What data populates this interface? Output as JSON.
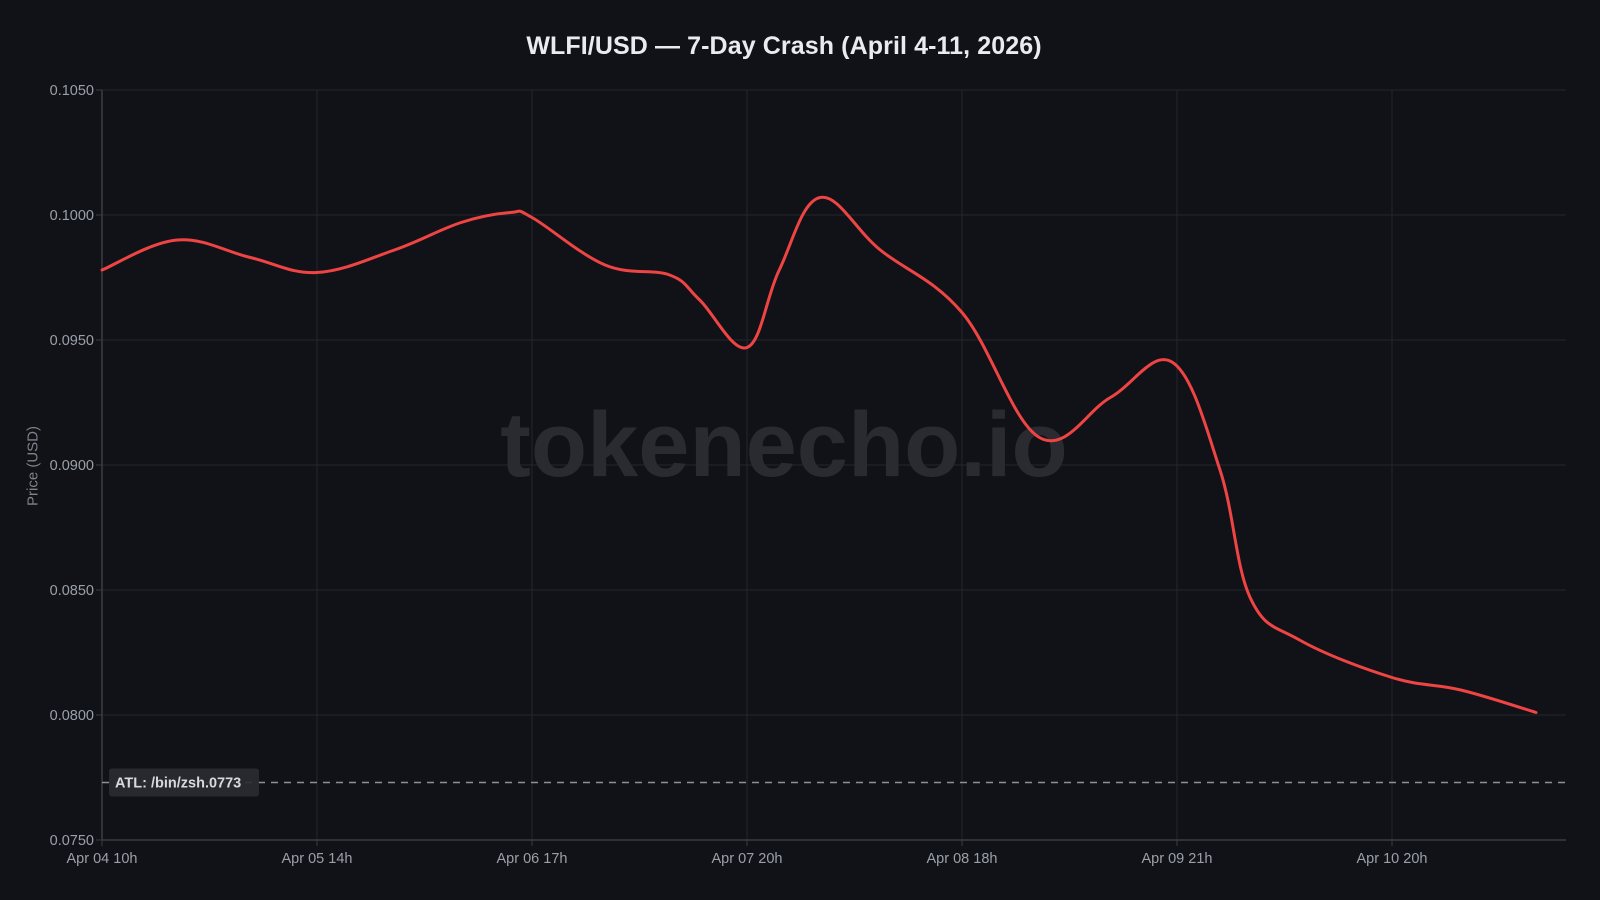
{
  "chart_data": {
    "type": "line",
    "title": "WLFI/USD — 7-Day Crash (April 4-11, 2026)",
    "xlabel": "",
    "ylabel": "Price (USD)",
    "ylim": [
      0.075,
      0.105
    ],
    "yticks": [
      "0.0750",
      "0.0800",
      "0.0850",
      "0.0900",
      "0.0950",
      "0.1000",
      "0.1050"
    ],
    "xticks": [
      "Apr 04 10h",
      "Apr 05 14h",
      "Apr 06 17h",
      "Apr 07 20h",
      "Apr 08 18h",
      "Apr 09 21h",
      "Apr 10 20h"
    ],
    "grid": true,
    "legend": null,
    "watermark": "tokenecho.io",
    "series": [
      {
        "name": "WLFI/USD",
        "color": "#ef4444",
        "points": [
          {
            "x": 0.0,
            "y": 0.0978
          },
          {
            "x": 0.35,
            "y": 0.099
          },
          {
            "x": 0.69,
            "y": 0.0983
          },
          {
            "x": 1.0,
            "y": 0.0977
          },
          {
            "x": 1.36,
            "y": 0.0986
          },
          {
            "x": 1.67,
            "y": 0.0997
          },
          {
            "x": 1.9,
            "y": 0.1001
          },
          {
            "x": 2.0,
            "y": 0.0999
          },
          {
            "x": 2.34,
            "y": 0.098
          },
          {
            "x": 2.64,
            "y": 0.0976
          },
          {
            "x": 2.78,
            "y": 0.0966
          },
          {
            "x": 3.0,
            "y": 0.0947
          },
          {
            "x": 3.15,
            "y": 0.0978
          },
          {
            "x": 3.34,
            "y": 0.1007
          },
          {
            "x": 3.62,
            "y": 0.0986
          },
          {
            "x": 4.0,
            "y": 0.0961
          },
          {
            "x": 4.36,
            "y": 0.0911
          },
          {
            "x": 4.69,
            "y": 0.0927
          },
          {
            "x": 4.98,
            "y": 0.0941
          },
          {
            "x": 5.2,
            "y": 0.0898
          },
          {
            "x": 5.34,
            "y": 0.0847
          },
          {
            "x": 5.57,
            "y": 0.083
          },
          {
            "x": 6.0,
            "y": 0.0815
          },
          {
            "x": 6.32,
            "y": 0.081
          },
          {
            "x": 6.67,
            "y": 0.0801
          }
        ]
      }
    ],
    "annotations": [
      {
        "type": "hline",
        "y": 0.0773,
        "style": "dashed",
        "label": "ATL: /bin/zsh.0773"
      }
    ]
  },
  "title": "WLFI/USD — 7-Day Crash (April 4-11, 2026)",
  "y_axis_title": "Price (USD)",
  "watermark": "tokenecho.io",
  "atl_label": "ATL: /bin/zsh.0773"
}
